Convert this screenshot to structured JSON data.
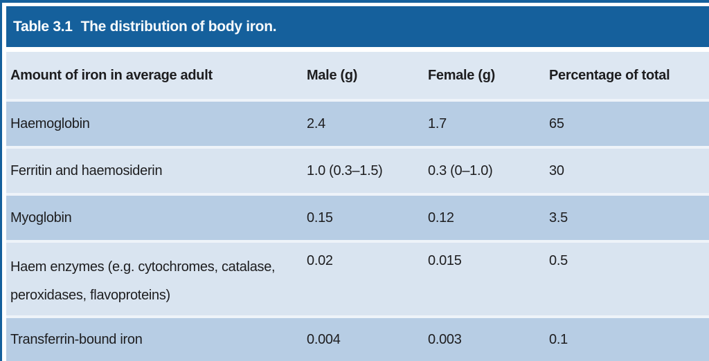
{
  "table": {
    "title_label": "Table 3.1",
    "title_caption": "The distribution of body iron.",
    "columns": [
      "Amount of iron in average adult",
      "Male (g)",
      "Female (g)",
      "Percentage of total"
    ],
    "rows": [
      {
        "label": "Haemoglobin",
        "male": "2.4",
        "female": "1.7",
        "pct": "65"
      },
      {
        "label": "Ferritin and haemosiderin",
        "male": "1.0 (0.3–1.5)",
        "female": "0.3 (0–1.0)",
        "pct": "30"
      },
      {
        "label": "Myoglobin",
        "male": "0.15",
        "female": "0.12",
        "pct": "3.5"
      },
      {
        "label": "Haem enzymes (e.g. cytochromes, catalase, peroxidases, flavoproteins)",
        "male": "0.02",
        "female": "0.015",
        "pct": "0.5"
      },
      {
        "label": "Transferrin-bound iron",
        "male": "0.004",
        "female": "0.003",
        "pct": "0.1"
      }
    ],
    "colors": {
      "accent_dark_blue": "#15609c",
      "header_row_bg": "#dde7f2",
      "row_medium_bg": "#b7cde4",
      "row_light_bg": "#d9e4f0",
      "title_text": "#ffffff",
      "body_text": "#1d1d1f"
    }
  }
}
